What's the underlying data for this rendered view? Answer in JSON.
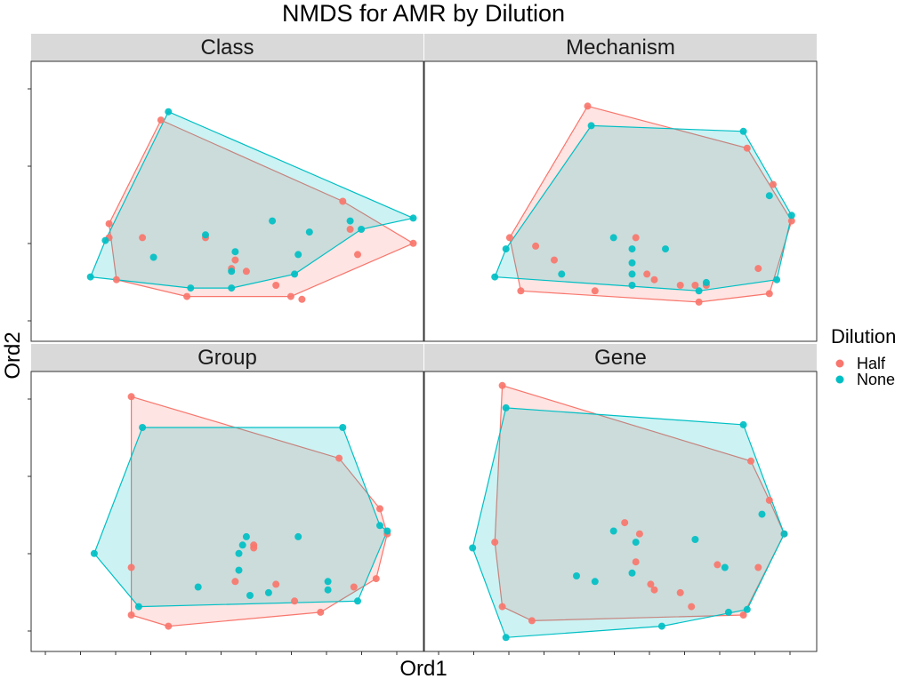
{
  "title": "NMDS for AMR by Dilution",
  "xlabel": "Ord1",
  "ylabel": "Ord2",
  "legend": {
    "title": "Dilution",
    "entries": [
      {
        "label": "Half",
        "color": "#F8766D"
      },
      {
        "label": "None",
        "color": "#00BFC4"
      }
    ]
  },
  "colors": {
    "half": "#F8766D",
    "none": "#00BFC4",
    "strip": "#D9D9D9"
  },
  "chart_data": [
    {
      "type": "scatter",
      "facet": "Class",
      "xlim": [
        0,
        100
      ],
      "ylim": [
        0,
        100
      ],
      "series": [
        {
          "name": "Half",
          "points": [
            [
              35,
              79
            ],
            [
              21,
              42
            ],
            [
              21,
              37
            ],
            [
              30,
              37
            ],
            [
              47,
              37
            ],
            [
              55,
              29
            ],
            [
              54,
              26
            ],
            [
              58,
              25
            ],
            [
              66,
              20
            ],
            [
              73,
              15
            ],
            [
              84,
              50
            ],
            [
              86,
              40
            ],
            [
              88,
              31
            ],
            [
              103,
              35
            ],
            [
              42,
              16
            ],
            [
              70,
              16
            ],
            [
              23,
              22
            ]
          ],
          "hull": [
            [
              35,
              79
            ],
            [
              21,
              42
            ],
            [
              23,
              22
            ],
            [
              42,
              16
            ],
            [
              70,
              16
            ],
            [
              103,
              35
            ],
            [
              84,
              50
            ]
          ]
        },
        {
          "name": "None",
          "points": [
            [
              37,
              82
            ],
            [
              20,
              36
            ],
            [
              16,
              23
            ],
            [
              33,
              30
            ],
            [
              47,
              38
            ],
            [
              55,
              32
            ],
            [
              54,
              25
            ],
            [
              65,
              43
            ],
            [
              75,
              39
            ],
            [
              71,
              24
            ],
            [
              72,
              31
            ],
            [
              86,
              43
            ],
            [
              89,
              40
            ],
            [
              103,
              44
            ],
            [
              43,
              19
            ],
            [
              54,
              19
            ]
          ],
          "hull": [
            [
              37,
              82
            ],
            [
              20,
              36
            ],
            [
              16,
              23
            ],
            [
              43,
              19
            ],
            [
              54,
              19
            ],
            [
              71,
              24
            ],
            [
              89,
              40
            ],
            [
              103,
              44
            ]
          ]
        }
      ]
    },
    {
      "type": "scatter",
      "facet": "Mechanism",
      "xlim": [
        0,
        100
      ],
      "ylim": [
        0,
        100
      ],
      "series": [
        {
          "name": "Half",
          "points": [
            [
              44,
              84
            ],
            [
              35,
              29
            ],
            [
              30,
              34
            ],
            [
              23,
              37
            ],
            [
              57,
              37
            ],
            [
              60,
              24
            ],
            [
              62,
              22
            ],
            [
              69,
              20
            ],
            [
              73,
              20
            ],
            [
              76,
              20
            ],
            [
              87,
              69
            ],
            [
              94,
              56
            ],
            [
              90,
              26
            ],
            [
              99,
              43
            ],
            [
              46,
              18
            ],
            [
              74,
              14
            ],
            [
              26,
              18
            ],
            [
              93,
              17
            ]
          ],
          "hull": [
            [
              44,
              84
            ],
            [
              23,
              37
            ],
            [
              26,
              18
            ],
            [
              74,
              14
            ],
            [
              93,
              17
            ],
            [
              99,
              43
            ],
            [
              87,
              69
            ]
          ]
        },
        {
          "name": "None",
          "points": [
            [
              45,
              77
            ],
            [
              22,
              33
            ],
            [
              19,
              23
            ],
            [
              37,
              24
            ],
            [
              51,
              37
            ],
            [
              56,
              33
            ],
            [
              56,
              28
            ],
            [
              56,
              20
            ],
            [
              56,
              24
            ],
            [
              65,
              33
            ],
            [
              76,
              21
            ],
            [
              93,
              52
            ],
            [
              99,
              45
            ],
            [
              95,
              22
            ],
            [
              74,
              18
            ],
            [
              86,
              75
            ]
          ],
          "hull": [
            [
              45,
              77
            ],
            [
              22,
              33
            ],
            [
              19,
              23
            ],
            [
              74,
              18
            ],
            [
              95,
              22
            ],
            [
              99,
              45
            ],
            [
              86,
              75
            ]
          ]
        }
      ]
    },
    {
      "type": "scatter",
      "facet": "Group",
      "xlim": [
        0,
        100
      ],
      "ylim": [
        0,
        100
      ],
      "series": [
        {
          "name": "Half",
          "points": [
            [
              27,
              91
            ],
            [
              27,
              30
            ],
            [
              27,
              13
            ],
            [
              37,
              9
            ],
            [
              55,
              25
            ],
            [
              60,
              38
            ],
            [
              60,
              37
            ],
            [
              66,
              24
            ],
            [
              71,
              18
            ],
            [
              78,
              14
            ],
            [
              83,
              69
            ],
            [
              94,
              51
            ],
            [
              96,
              42
            ],
            [
              93,
              26
            ],
            [
              87,
              23
            ]
          ],
          "hull": [
            [
              27,
              91
            ],
            [
              27,
              30
            ],
            [
              27,
              13
            ],
            [
              37,
              9
            ],
            [
              78,
              14
            ],
            [
              93,
              26
            ],
            [
              96,
              42
            ],
            [
              94,
              51
            ],
            [
              83,
              69
            ]
          ]
        },
        {
          "name": "None",
          "points": [
            [
              30,
              80
            ],
            [
              17,
              35
            ],
            [
              29,
              16
            ],
            [
              45,
              23
            ],
            [
              57,
              38
            ],
            [
              58,
              41
            ],
            [
              56,
              29
            ],
            [
              56,
              35
            ],
            [
              59,
              20
            ],
            [
              64,
              21
            ],
            [
              72,
              41
            ],
            [
              80,
              25
            ],
            [
              80,
              22
            ],
            [
              94,
              45
            ],
            [
              96,
              43
            ],
            [
              88,
              18
            ],
            [
              84,
              80
            ]
          ],
          "hull": [
            [
              30,
              80
            ],
            [
              17,
              35
            ],
            [
              29,
              16
            ],
            [
              88,
              18
            ],
            [
              96,
              43
            ],
            [
              94,
              45
            ],
            [
              84,
              80
            ]
          ]
        }
      ]
    },
    {
      "type": "scatter",
      "facet": "Gene",
      "xlim": [
        0,
        100
      ],
      "ylim": [
        0,
        100
      ],
      "series": [
        {
          "name": "Half",
          "points": [
            [
              21,
              95
            ],
            [
              19,
              39
            ],
            [
              21,
              16
            ],
            [
              29,
              11
            ],
            [
              54,
              46
            ],
            [
              58,
              42
            ],
            [
              57,
              32
            ],
            [
              61,
              24
            ],
            [
              62,
              22
            ],
            [
              69,
              21
            ],
            [
              72,
              16
            ],
            [
              79,
              31
            ],
            [
              88,
              68
            ],
            [
              93,
              54
            ],
            [
              97,
              42
            ],
            [
              90,
              30
            ],
            [
              86,
              13
            ]
          ],
          "hull": [
            [
              21,
              95
            ],
            [
              19,
              39
            ],
            [
              21,
              16
            ],
            [
              29,
              11
            ],
            [
              86,
              13
            ],
            [
              97,
              42
            ],
            [
              93,
              54
            ],
            [
              88,
              68
            ]
          ]
        },
        {
          "name": "None",
          "points": [
            [
              22,
              87
            ],
            [
              13,
              37
            ],
            [
              22,
              5
            ],
            [
              41,
              27
            ],
            [
              46,
              25
            ],
            [
              51,
              43
            ],
            [
              57,
              39
            ],
            [
              56,
              28
            ],
            [
              64,
              9
            ],
            [
              73,
              40
            ],
            [
              81,
              30
            ],
            [
              82,
              14
            ],
            [
              91,
              49
            ],
            [
              97,
              42
            ],
            [
              87,
              15
            ],
            [
              86,
              81
            ]
          ],
          "hull": [
            [
              22,
              87
            ],
            [
              13,
              37
            ],
            [
              22,
              5
            ],
            [
              64,
              9
            ],
            [
              87,
              15
            ],
            [
              97,
              42
            ],
            [
              86,
              81
            ]
          ]
        }
      ]
    }
  ]
}
